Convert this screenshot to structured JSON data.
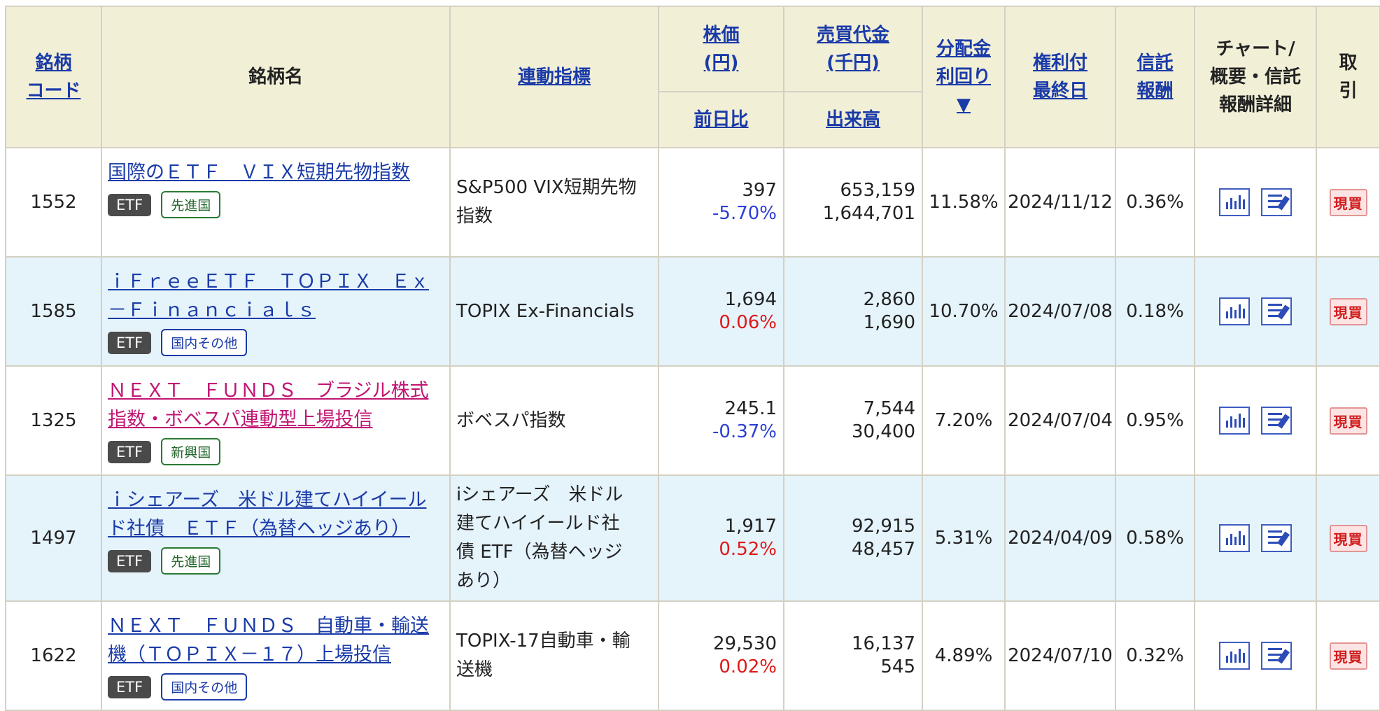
{
  "headers": {
    "code": "銘柄\nコード",
    "code_l1": "銘柄",
    "code_l2": "コード",
    "name": "銘柄名",
    "index": "連動指標",
    "price_l1": "株価",
    "price_l2": "(円)",
    "volume_value_l1": "売買代金",
    "volume_value_l2": "(千円)",
    "change": "前日比",
    "volume": "出来高",
    "yield_l1": "分配金",
    "yield_l2": "利回り",
    "yield_sort": "▼",
    "record_l1": "権利付",
    "record_l2": "最終日",
    "fee_l1": "信託",
    "fee_l2": "報酬",
    "chart_l1": "チャート/",
    "chart_l2": "概要・信託",
    "chart_l3": "報酬詳細",
    "trade_l1": "取",
    "trade_l2": "引"
  },
  "buy_label": "現買",
  "rows": [
    {
      "code": "1552",
      "name_l1": "国際のＥＴＦ　ＶＩＸ短期先物指数",
      "name_l2": "",
      "etf": "ETF",
      "region": "先進国",
      "index_l1": "S&P500 VIX短期先物",
      "index_l2": "指数",
      "index_l3": "",
      "index_l4": "",
      "price": "397",
      "change": "-5.70%",
      "trade_value": "653,159",
      "volume": "1,644,701",
      "yield": "11.58%",
      "record_date": "2024/11/12",
      "fee": "0.36%"
    },
    {
      "code": "1585",
      "name_l1": "ｉＦｒｅｅＥＴＦ　ＴＯＰＩＸ　Ｅｘ",
      "name_l2": "－Ｆｉｎａｎｃｉａｌｓ",
      "etf": "ETF",
      "region": "国内その他",
      "index_l1": "TOPIX Ex-Financials",
      "index_l2": "",
      "index_l3": "",
      "index_l4": "",
      "price": "1,694",
      "change": "0.06%",
      "trade_value": "2,860",
      "volume": "1,690",
      "yield": "10.70%",
      "record_date": "2024/07/08",
      "fee": "0.18%"
    },
    {
      "code": "1325",
      "name_l1": "ＮＥＸＴ　ＦＵＮＤＳ　ブラジル株式",
      "name_l2": "指数・ボベスパ連動型上場投信",
      "etf": "ETF",
      "region": "新興国",
      "index_l1": "ボベスパ指数",
      "index_l2": "",
      "index_l3": "",
      "index_l4": "",
      "price": "245.1",
      "change": "-0.37%",
      "trade_value": "7,544",
      "volume": "30,400",
      "yield": "7.20%",
      "record_date": "2024/07/04",
      "fee": "0.95%"
    },
    {
      "code": "1497",
      "name_l1": "ｉシェアーズ　米ドル建てハイイール",
      "name_l2": "ド社債　ＥＴＦ（為替ヘッジあり）",
      "etf": "ETF",
      "region": "先進国",
      "index_l1": "iシェアーズ　米ドル",
      "index_l2": "建てハイイールド社",
      "index_l3": "債 ETF（為替ヘッジ",
      "index_l4": "あり）",
      "price": "1,917",
      "change": "0.52%",
      "trade_value": "92,915",
      "volume": "48,457",
      "yield": "5.31%",
      "record_date": "2024/04/09",
      "fee": "0.58%"
    },
    {
      "code": "1622",
      "name_l1": "ＮＥＸＴ　ＦＵＮＤＳ　自動車・輸送",
      "name_l2": "機（ＴＯＰＩＸ－１７）上場投信",
      "etf": "ETF",
      "region": "国内その他",
      "index_l1": "TOPIX-17自動車・輸",
      "index_l2": "送機",
      "index_l3": "",
      "index_l4": "",
      "price": "29,530",
      "change": "0.02%",
      "trade_value": "16,137",
      "volume": "545",
      "yield": "4.89%",
      "record_date": "2024/07/10",
      "fee": "0.32%"
    }
  ]
}
